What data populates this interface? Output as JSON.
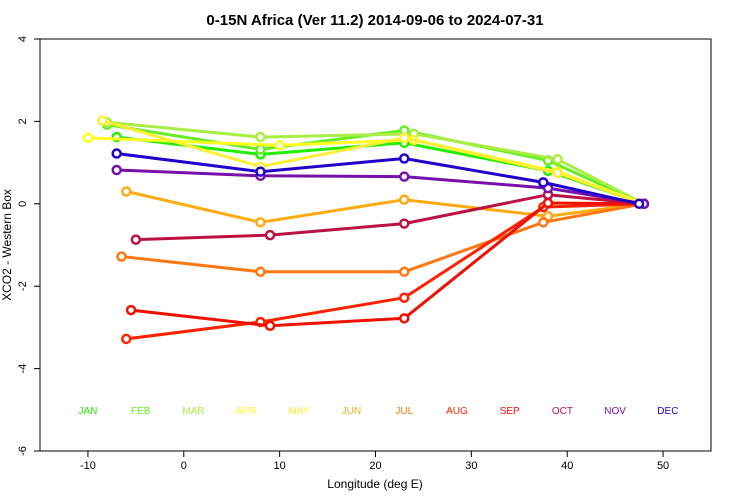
{
  "chart_data": {
    "type": "line",
    "title": "0-15N Africa (Ver 11.2)   2014-09-06 to 2024-07-31",
    "xlabel": "Longitude (deg E)",
    "ylabel": "XCO2 - Western Box",
    "xlim": [
      -15,
      55
    ],
    "ylim": [
      -6,
      4
    ],
    "xticks": [
      -10,
      0,
      10,
      20,
      30,
      40,
      50
    ],
    "yticks": [
      -6,
      -4,
      -2,
      0,
      2,
      4
    ],
    "grid": false,
    "series": [
      {
        "name": "JAN",
        "color": "#22ee00",
        "points": [
          [
            -7,
            1.62
          ],
          [
            8,
            1.2
          ],
          [
            23,
            1.48
          ],
          [
            38,
            0.8
          ],
          [
            48,
            0
          ]
        ]
      },
      {
        "name": "FEB",
        "color": "#66ee22",
        "points": [
          [
            -8,
            1.92
          ],
          [
            8,
            1.32
          ],
          [
            23,
            1.78
          ],
          [
            38,
            1.05
          ],
          [
            48,
            0
          ]
        ]
      },
      {
        "name": "MAR",
        "color": "#aaee44",
        "points": [
          [
            -8,
            1.98
          ],
          [
            8,
            1.62
          ],
          [
            24,
            1.7
          ],
          [
            39,
            1.08
          ],
          [
            48,
            0
          ]
        ]
      },
      {
        "name": "APR",
        "color": "#ffff22",
        "points": [
          [
            -10,
            1.6
          ],
          [
            10,
            1.42
          ],
          [
            24,
            1.55
          ],
          [
            39,
            0.78
          ],
          [
            48,
            0
          ]
        ]
      },
      {
        "name": "MAY",
        "color": "#ffee33",
        "points": [
          [
            -8.5,
            2.02
          ],
          [
            8,
            0.9
          ],
          [
            23,
            1.6
          ],
          [
            39,
            0.75
          ],
          [
            48,
            0
          ]
        ]
      },
      {
        "name": "JUN",
        "color": "#ffaa11",
        "points": [
          [
            -6,
            0.3
          ],
          [
            8,
            -0.45
          ],
          [
            23,
            0.1
          ],
          [
            38,
            -0.3
          ],
          [
            48,
            0
          ]
        ]
      },
      {
        "name": "JUL",
        "color": "#ff7711",
        "points": [
          [
            -6.5,
            -1.28
          ],
          [
            8,
            -1.65
          ],
          [
            23,
            -1.65
          ],
          [
            37.5,
            -0.45
          ],
          [
            48,
            0
          ]
        ]
      },
      {
        "name": "AUG",
        "color": "#ff2200",
        "points": [
          [
            -6,
            -3.28
          ],
          [
            8,
            -2.87
          ],
          [
            23,
            -2.28
          ],
          [
            37.5,
            -0.08
          ],
          [
            48,
            0
          ]
        ]
      },
      {
        "name": "SEP",
        "color": "#ee1100",
        "points": [
          [
            -5.5,
            -2.58
          ],
          [
            9,
            -2.96
          ],
          [
            23,
            -2.78
          ],
          [
            38,
            0.02
          ],
          [
            48,
            0
          ]
        ]
      },
      {
        "name": "OCT",
        "color": "#bb1144",
        "points": [
          [
            -5,
            -0.87
          ],
          [
            9,
            -0.76
          ],
          [
            23,
            -0.48
          ],
          [
            38,
            0.22
          ],
          [
            48,
            0
          ]
        ]
      },
      {
        "name": "NOV",
        "color": "#7711aa",
        "points": [
          [
            -7,
            0.82
          ],
          [
            8,
            0.68
          ],
          [
            23,
            0.66
          ],
          [
            38,
            0.38
          ],
          [
            48,
            0
          ]
        ]
      },
      {
        "name": "DEC",
        "color": "#2200cc",
        "points": [
          [
            -7,
            1.22
          ],
          [
            8,
            0.78
          ],
          [
            23,
            1.1
          ],
          [
            37.5,
            0.52
          ],
          [
            47.5,
            0
          ]
        ]
      }
    ],
    "month_labels_y": -5,
    "month_labels_x": [
      -10,
      -4.5,
      1,
      6.5,
      12,
      17.5,
      23,
      28.5,
      34,
      39.5,
      45,
      50.5
    ],
    "month_labels": [
      "JAN",
      "FEB",
      "MAR",
      "APR",
      "MAY",
      "JUN",
      "JUL",
      "AUG",
      "SEP",
      "OCT",
      "NOV",
      "DEC"
    ]
  }
}
